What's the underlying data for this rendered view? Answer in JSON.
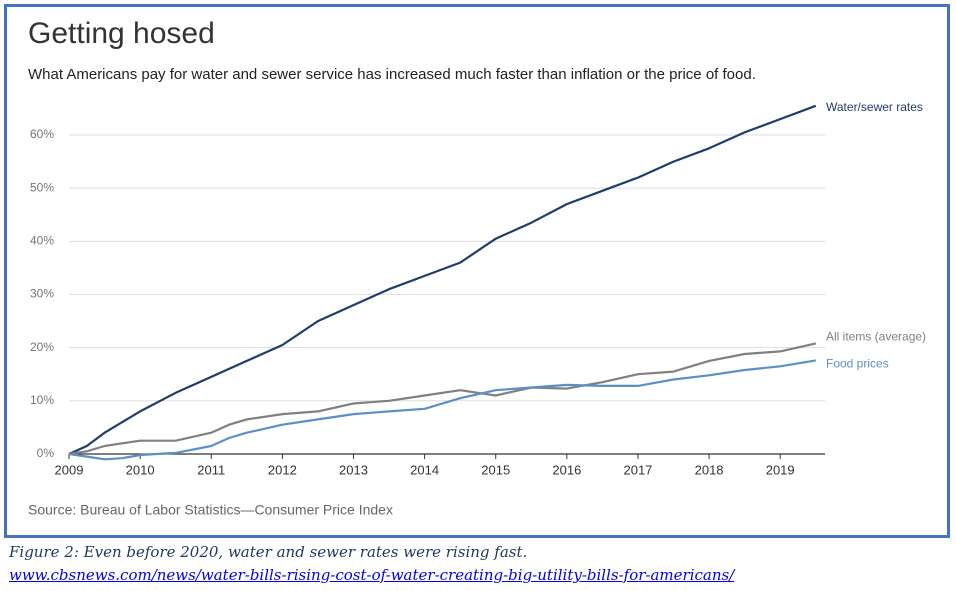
{
  "chart_data": {
    "type": "line",
    "title": "Getting hosed",
    "subtitle": "What Americans pay for water and sewer service has increased much faster than inflation or the price of food.",
    "source": "Source: Bureau of Labor Statistics—Consumer Price Index",
    "x": [
      2009,
      2009.25,
      2009.5,
      2009.75,
      2010,
      2010.5,
      2011,
      2011.25,
      2011.5,
      2012,
      2012.5,
      2013,
      2013.5,
      2014,
      2014.5,
      2015,
      2015.5,
      2016,
      2016.5,
      2017,
      2017.5,
      2018,
      2018.5,
      2019,
      2019.5
    ],
    "series": [
      {
        "name": "Water/sewer rates",
        "color": "#1f3d6b",
        "values": [
          0,
          1.5,
          4,
          6,
          8,
          11.5,
          14.5,
          16,
          17.5,
          20.5,
          25,
          28,
          31,
          33.5,
          36,
          40.5,
          43.5,
          47,
          49.5,
          52,
          55,
          57.5,
          60.5,
          63,
          65.5
        ]
      },
      {
        "name": "All items (average)",
        "color": "#808080",
        "values": [
          0,
          0.5,
          1.5,
          2,
          2.5,
          2.5,
          4,
          5.5,
          6.5,
          7.5,
          8,
          9.5,
          10,
          11,
          12,
          11,
          12.5,
          12.3,
          13.5,
          15,
          15.5,
          17.5,
          18.8,
          19.3,
          20.8
        ]
      },
      {
        "name": "Food prices",
        "color": "#5b8fc8",
        "values": [
          0,
          -0.5,
          -1,
          -0.8,
          -0.2,
          0.2,
          1.5,
          3,
          4,
          5.5,
          6.5,
          7.5,
          8,
          8.5,
          10.5,
          12,
          12.5,
          13,
          12.8,
          12.8,
          14,
          14.8,
          15.8,
          16.5,
          17.6
        ]
      }
    ],
    "xlim": [
      2009,
      2019.63
    ],
    "xticks": [
      2009,
      2010,
      2011,
      2012,
      2013,
      2014,
      2015,
      2016,
      2017,
      2018,
      2019
    ],
    "ylim": [
      -2,
      68
    ],
    "yticks": [
      {
        "value": 0,
        "label": "0%"
      },
      {
        "value": 10,
        "label": "10%"
      },
      {
        "value": 20,
        "label": "20%"
      },
      {
        "value": 30,
        "label": "30%"
      },
      {
        "value": 40,
        "label": "40%"
      },
      {
        "value": 50,
        "label": "50%"
      },
      {
        "value": 60,
        "label": "60%"
      }
    ],
    "grid": true
  },
  "caption": {
    "text": "Figure 2: Even before 2020, water and sewer rates were rising fast.",
    "link": "www.cbsnews.com/news/water-bills-rising-cost-of-water-creating-big-utility-bills-for-americans/"
  }
}
